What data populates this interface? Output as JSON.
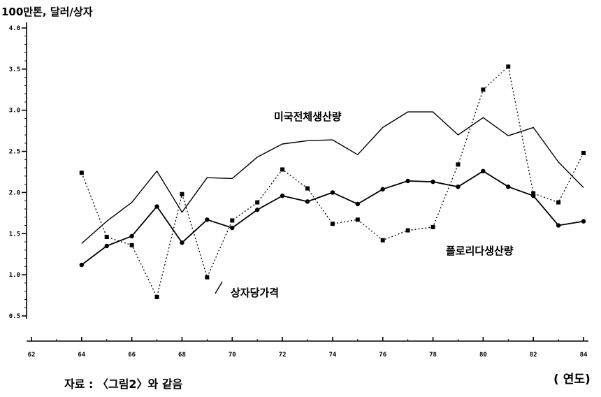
{
  "ylabel": "100만톤, 달러/상자",
  "xunit": "( 연도)",
  "source": "자료 : 〈그림2〉와 같음",
  "chart_data": {
    "type": "line",
    "title": "",
    "xlabel": "( 연도)",
    "ylabel": "100만톤, 달러/상자",
    "xlim": [
      62,
      84
    ],
    "ylim": [
      0.5,
      4.0
    ],
    "x_ticks": [
      62,
      64,
      66,
      68,
      70,
      72,
      74,
      76,
      78,
      80,
      82,
      84
    ],
    "x_tick_labels": [
      "62",
      "64",
      "66",
      "68",
      "70",
      "72",
      "74",
      "76",
      "78",
      "80",
      "82",
      "84"
    ],
    "y_ticks": [
      0.5,
      1.0,
      1.5,
      2.0,
      2.5,
      3.0,
      3.5,
      4.0
    ],
    "y_tick_labels": [
      "0.5",
      "1.0",
      "1.5",
      "2.0",
      "2.5",
      "3.0",
      "3.5",
      "4.0"
    ],
    "grid": false,
    "series": [
      {
        "name": "미국전체생산량",
        "style": "solid",
        "marker": "none",
        "x": [
          64,
          65,
          66,
          67,
          68,
          69,
          70,
          71,
          72,
          73,
          74,
          75,
          76,
          77,
          78,
          79,
          80,
          81,
          82,
          83,
          84
        ],
        "values": [
          1.38,
          1.65,
          1.88,
          2.26,
          1.76,
          2.18,
          2.17,
          2.43,
          2.59,
          2.63,
          2.64,
          2.46,
          2.79,
          2.98,
          2.98,
          2.7,
          2.91,
          2.69,
          2.79,
          2.37,
          2.06
        ]
      },
      {
        "name": "플로리다생산량",
        "style": "solid",
        "marker": "circle",
        "x": [
          64,
          65,
          66,
          67,
          68,
          69,
          70,
          71,
          72,
          73,
          74,
          75,
          76,
          77,
          78,
          79,
          80,
          81,
          82,
          83,
          84
        ],
        "values": [
          1.12,
          1.35,
          1.47,
          1.83,
          1.39,
          1.67,
          1.57,
          1.79,
          1.96,
          1.89,
          2.0,
          1.86,
          2.04,
          2.14,
          2.13,
          2.07,
          2.26,
          2.07,
          1.96,
          1.6,
          1.65
        ]
      },
      {
        "name": "상자당가격",
        "style": "dotted",
        "marker": "square",
        "x": [
          64,
          65,
          66,
          67,
          68,
          69,
          70,
          71,
          72,
          73,
          74,
          75,
          76,
          77,
          78,
          79,
          80,
          81,
          82,
          83,
          84
        ],
        "values": [
          2.24,
          1.46,
          1.36,
          0.73,
          1.98,
          0.97,
          1.66,
          1.88,
          2.28,
          2.05,
          1.62,
          1.67,
          1.42,
          1.54,
          1.58,
          2.34,
          3.25,
          3.53,
          1.99,
          1.88,
          2.48
        ]
      }
    ]
  }
}
